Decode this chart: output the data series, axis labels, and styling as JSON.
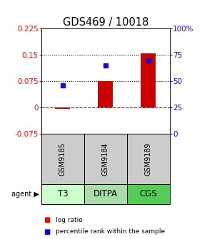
{
  "title": "GDS469 / 10018",
  "samples": [
    "GSM9185",
    "GSM9184",
    "GSM9189"
  ],
  "agents": [
    "T3",
    "DITPA",
    "CGS"
  ],
  "log_ratios": [
    -0.004,
    0.075,
    0.155
  ],
  "percentiles": [
    46,
    65,
    70
  ],
  "ylim_left": [
    -0.075,
    0.225
  ],
  "ylim_right": [
    0,
    100
  ],
  "yticks_left": [
    -0.075,
    0,
    0.075,
    0.15,
    0.225
  ],
  "yticks_right": [
    0,
    25,
    50,
    75,
    100
  ],
  "ytick_labels_left": [
    "-0.075",
    "0",
    "0.075",
    "0.15",
    "0.225"
  ],
  "ytick_labels_right": [
    "0",
    "25",
    "50",
    "75",
    "100%"
  ],
  "hlines_dotted": [
    0.075,
    0.15
  ],
  "hline_dashed": 0,
  "bar_color": "#cc0000",
  "dot_color": "#1111cc",
  "bar_width": 0.35,
  "agent_colors": [
    "#ccffcc",
    "#aaddaa",
    "#55cc55"
  ],
  "sample_box_color": "#cccccc",
  "title_fontsize": 10.5,
  "tick_fontsize": 7.5,
  "legend_fontsize": 6.5,
  "agent_fontsize": 8.5,
  "sample_fontsize": 7
}
